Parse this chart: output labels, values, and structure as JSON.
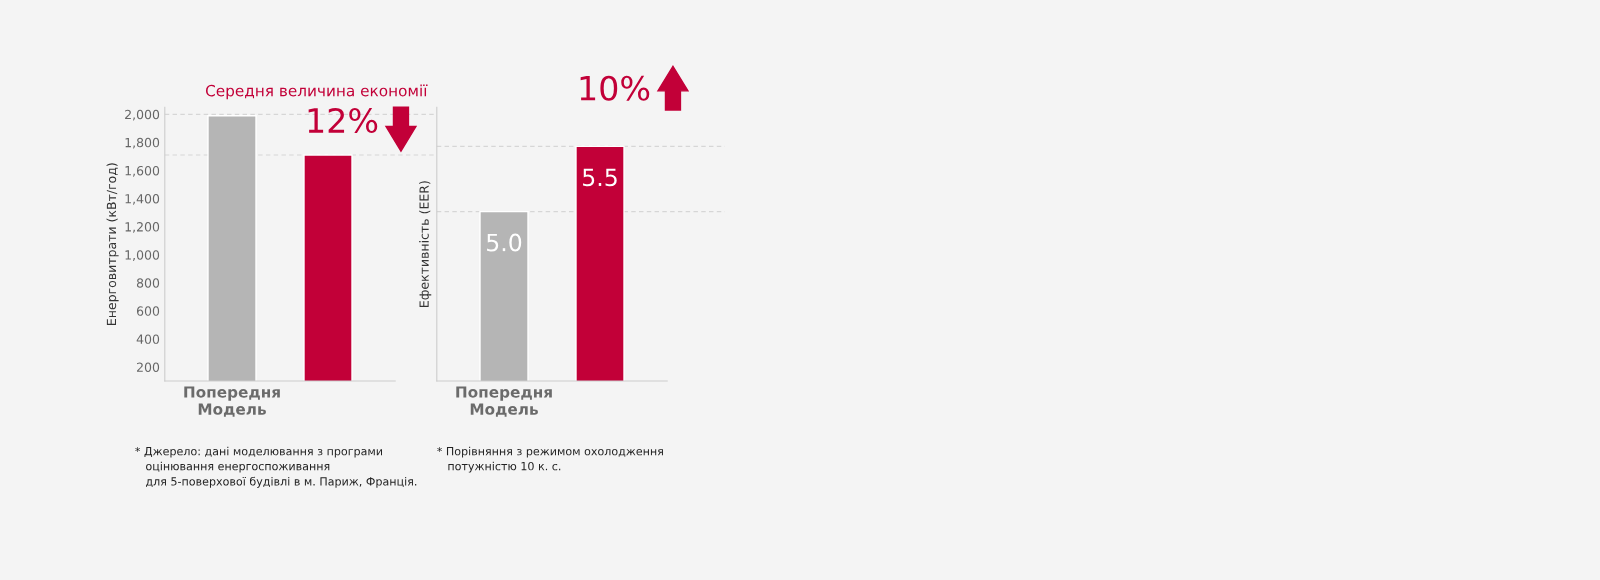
{
  "chart_data": [
    {
      "type": "bar",
      "title": "Середня величина економії",
      "ylabel": "Енерговитрати (кВт/год)",
      "categories": [
        "Попередня\nМодель",
        null
      ],
      "values": [
        1990,
        1710
      ],
      "colors": [
        "#b5b5b5",
        "#c20038"
      ],
      "ylim": [
        100,
        2050
      ],
      "yticks": [
        {
          "value": 200,
          "label": "200"
        },
        {
          "value": 400,
          "label": "400"
        },
        {
          "value": 600,
          "label": "600"
        },
        {
          "value": 800,
          "label": "800"
        },
        {
          "value": 1000,
          "label": "1,000"
        },
        {
          "value": 1200,
          "label": "1,200"
        },
        {
          "value": 1400,
          "label": "1,400"
        },
        {
          "value": 1600,
          "label": "1,600"
        },
        {
          "value": 1800,
          "label": "1,800"
        },
        {
          "value": 2000,
          "label": "2,000"
        }
      ],
      "ref_lines": [
        {
          "axis": "y",
          "value": 2000,
          "color": "#d6d6d6",
          "line_style": "dashed"
        },
        {
          "axis": "y",
          "value": 1710,
          "color": "#d6d6d6",
          "line_style": "dashed"
        }
      ],
      "annotations": [
        "12%",
        "* Джерело: дані моделювання з програми\n   оцінювання енергоспоживання\n   для 5-поверхової будівлі в м. Париж, Франція."
      ]
    },
    {
      "type": "bar",
      "ylabel": "Ефективність (EER)",
      "categories": [
        "Попередня\nМодель",
        null
      ],
      "values": [
        5.0,
        5.5
      ],
      "colors": [
        "#b5b5b5",
        "#c20038"
      ],
      "data_labels": true,
      "value_labels": [
        "5.0",
        "5.5"
      ],
      "ylim": [
        3.7,
        5.8
      ],
      "tick_labels": "x",
      "ref_lines": [
        {
          "axis": "y",
          "value": 5.0,
          "color": "#d6d6d6",
          "line_style": "dashed"
        },
        {
          "axis": "y",
          "value": 5.5,
          "color": "#d6d6d6",
          "line_style": "dashed"
        }
      ],
      "annotations": [
        "10%",
        "* Порівняння з режимом охолодження\n   потужністю 10 к. с."
      ]
    }
  ]
}
